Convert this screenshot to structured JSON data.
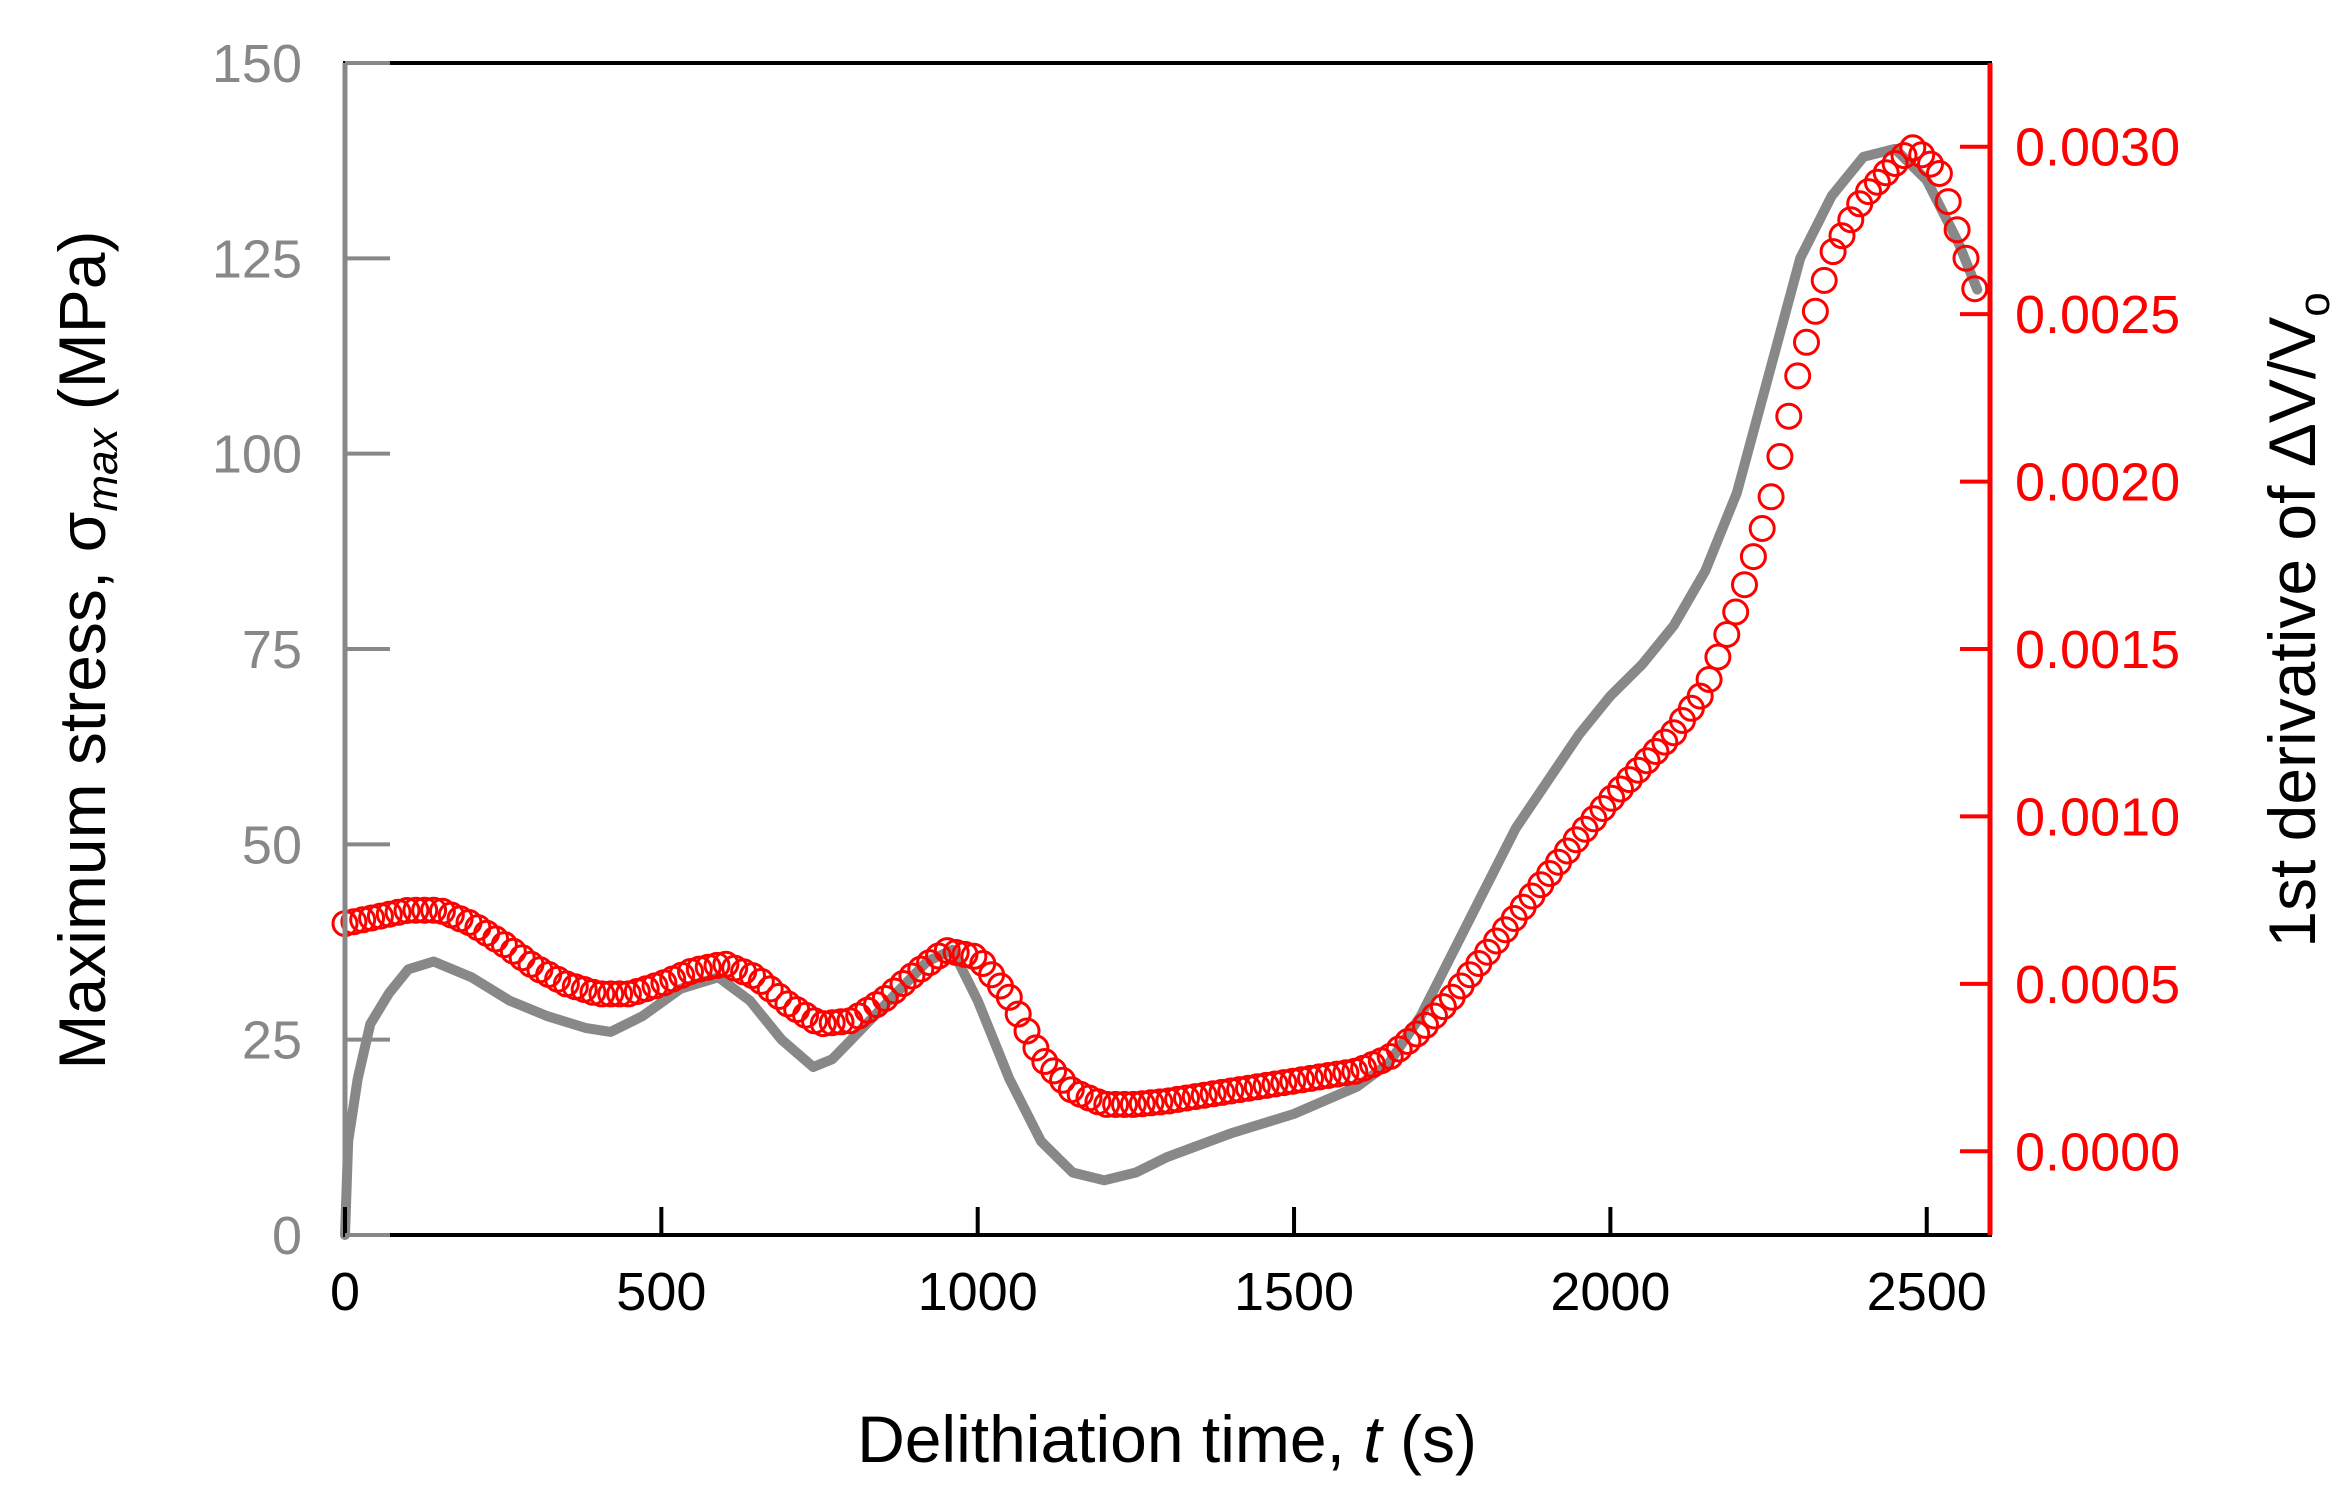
{
  "chart_data": {
    "type": "line",
    "title": "",
    "xlabel": {
      "text": "Delithiation time, ",
      "var": "t",
      "unit": " (s)"
    },
    "ylabel_left": {
      "text": "Maximum stress, σ",
      "sub": "max",
      "unit": " (MPa)"
    },
    "ylabel_right": {
      "text": "1st derivative of ΔV/V",
      "sub": "o"
    },
    "xlim": [
      0,
      2600
    ],
    "ylim_left": [
      0,
      150
    ],
    "ylim_right": [
      -0.00025,
      0.00325
    ],
    "x_ticks": [
      "0",
      "500",
      "1000",
      "1500",
      "2000",
      "2500"
    ],
    "y_left_ticks": [
      "0",
      "25",
      "50",
      "75",
      "100",
      "125",
      "150"
    ],
    "y_right_ticks": [
      "0.0000",
      "0.0005",
      "0.0010",
      "0.0015",
      "0.0020",
      "0.0025",
      "0.0030"
    ],
    "colors": {
      "stress": "#888888",
      "derivative": "#ff0000",
      "axis": "#000000"
    },
    "series": [
      {
        "name": "Maximum stress",
        "style": "line",
        "axis": "left",
        "points": [
          [
            0,
            0
          ],
          [
            5,
            12
          ],
          [
            20,
            20
          ],
          [
            40,
            27
          ],
          [
            70,
            31
          ],
          [
            100,
            34
          ],
          [
            140,
            35
          ],
          [
            200,
            33
          ],
          [
            260,
            30
          ],
          [
            320,
            28
          ],
          [
            380,
            26.5
          ],
          [
            420,
            26
          ],
          [
            470,
            28
          ],
          [
            530,
            31.5
          ],
          [
            590,
            33
          ],
          [
            640,
            30
          ],
          [
            690,
            25
          ],
          [
            740,
            21.5
          ],
          [
            770,
            22.5
          ],
          [
            800,
            25
          ],
          [
            860,
            30
          ],
          [
            920,
            35
          ],
          [
            960,
            36.5
          ],
          [
            1000,
            30
          ],
          [
            1050,
            20
          ],
          [
            1100,
            12
          ],
          [
            1150,
            8
          ],
          [
            1200,
            7
          ],
          [
            1250,
            8
          ],
          [
            1300,
            10
          ],
          [
            1400,
            13
          ],
          [
            1500,
            15.5
          ],
          [
            1600,
            19
          ],
          [
            1650,
            22
          ],
          [
            1700,
            28
          ],
          [
            1750,
            36
          ],
          [
            1800,
            44
          ],
          [
            1850,
            52
          ],
          [
            1900,
            58
          ],
          [
            1950,
            64
          ],
          [
            2000,
            69
          ],
          [
            2050,
            73
          ],
          [
            2100,
            78
          ],
          [
            2150,
            85
          ],
          [
            2200,
            95
          ],
          [
            2250,
            110
          ],
          [
            2300,
            125
          ],
          [
            2350,
            133
          ],
          [
            2400,
            138
          ],
          [
            2450,
            139
          ],
          [
            2500,
            135
          ],
          [
            2550,
            127
          ],
          [
            2580,
            121
          ]
        ]
      },
      {
        "name": "1st derivative of ΔV/Vo",
        "style": "markers",
        "axis": "right",
        "points": [
          [
            0,
            0.00068
          ],
          [
            50,
            0.0007
          ],
          [
            100,
            0.00072
          ],
          [
            150,
            0.00072
          ],
          [
            200,
            0.00068
          ],
          [
            250,
            0.00062
          ],
          [
            300,
            0.00055
          ],
          [
            350,
            0.0005
          ],
          [
            400,
            0.00047
          ],
          [
            450,
            0.00047
          ],
          [
            500,
            0.0005
          ],
          [
            550,
            0.00054
          ],
          [
            600,
            0.00056
          ],
          [
            650,
            0.00052
          ],
          [
            700,
            0.00044
          ],
          [
            750,
            0.00038
          ],
          [
            800,
            0.00039
          ],
          [
            850,
            0.00045
          ],
          [
            900,
            0.00053
          ],
          [
            950,
            0.0006
          ],
          [
            1000,
            0.00058
          ],
          [
            1050,
            0.00046
          ],
          [
            1100,
            0.00028
          ],
          [
            1150,
            0.00018
          ],
          [
            1200,
            0.00014
          ],
          [
            1250,
            0.00014
          ],
          [
            1300,
            0.00015
          ],
          [
            1400,
            0.00018
          ],
          [
            1500,
            0.00021
          ],
          [
            1600,
            0.00024
          ],
          [
            1650,
            0.00028
          ],
          [
            1700,
            0.00036
          ],
          [
            1750,
            0.00046
          ],
          [
            1800,
            0.00058
          ],
          [
            1850,
            0.0007
          ],
          [
            1900,
            0.00082
          ],
          [
            1950,
            0.00094
          ],
          [
            2000,
            0.00105
          ],
          [
            2050,
            0.00115
          ],
          [
            2100,
            0.00125
          ],
          [
            2150,
            0.00138
          ],
          [
            2200,
            0.00162
          ],
          [
            2250,
            0.00192
          ],
          [
            2300,
            0.00235
          ],
          [
            2350,
            0.00268
          ],
          [
            2400,
            0.00285
          ],
          [
            2450,
            0.00295
          ],
          [
            2480,
            0.003
          ],
          [
            2520,
            0.00292
          ],
          [
            2560,
            0.00268
          ],
          [
            2580,
            0.00255
          ]
        ]
      }
    ]
  }
}
